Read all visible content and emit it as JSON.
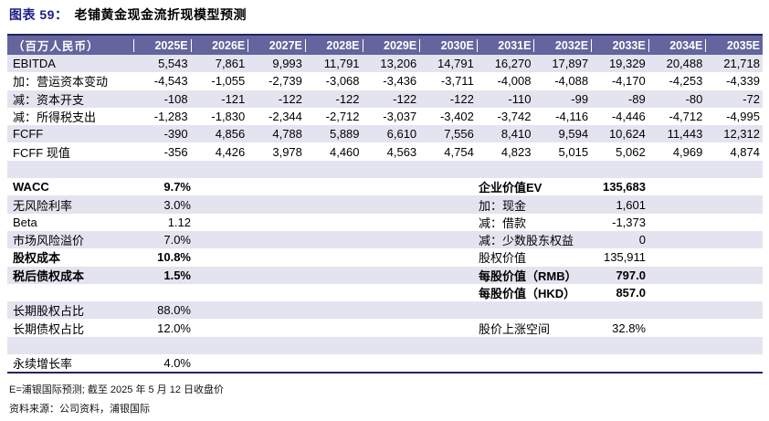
{
  "title": {
    "prefix": "图表 59：",
    "text": "老铺黄金现金流折现模型预测"
  },
  "colors": {
    "header_bg": "#64649e",
    "stripe_bg": "#e4e4f0",
    "title_accent": "#1c1c85",
    "border": "#23235f"
  },
  "forecast_table": {
    "unit_header": "（百万人民币）",
    "years": [
      "2025E",
      "2026E",
      "2027E",
      "2028E",
      "2029E",
      "2030E",
      "2031E",
      "2032E",
      "2033E",
      "2034E",
      "2035E"
    ],
    "rows": [
      {
        "label": "EBITDA",
        "values": [
          "5,543",
          "7,861",
          "9,993",
          "11,791",
          "13,206",
          "14,791",
          "16,270",
          "17,897",
          "19,329",
          "20,488",
          "21,718"
        ]
      },
      {
        "label": "加：营运资本变动",
        "values": [
          "-4,543",
          "-1,055",
          "-2,739",
          "-3,068",
          "-3,436",
          "-3,711",
          "-4,008",
          "-4,088",
          "-4,170",
          "-4,253",
          "-4,339"
        ]
      },
      {
        "label": "减：资本开支",
        "values": [
          "-108",
          "-121",
          "-122",
          "-122",
          "-122",
          "-122",
          "-110",
          "-99",
          "-89",
          "-80",
          "-72"
        ]
      },
      {
        "label": "减：所得税支出",
        "values": [
          "-1,283",
          "-1,830",
          "-2,344",
          "-2,712",
          "-3,037",
          "-3,402",
          "-3,742",
          "-4,116",
          "-4,446",
          "-4,712",
          "-4,995"
        ]
      },
      {
        "label": "FCFF",
        "values": [
          "-390",
          "4,856",
          "4,788",
          "5,889",
          "6,610",
          "7,556",
          "8,410",
          "9,594",
          "10,624",
          "11,443",
          "12,312"
        ]
      },
      {
        "label": "FCFF 现值",
        "values": [
          "-356",
          "4,426",
          "3,978",
          "4,460",
          "4,563",
          "4,754",
          "4,823",
          "5,015",
          "5,062",
          "4,969",
          "4,874"
        ]
      }
    ]
  },
  "assumptions": {
    "rows": [
      {
        "left_label": "",
        "left_value": "",
        "left_bold": false,
        "right_label": "",
        "right_value": "",
        "right_bold": false
      },
      {
        "left_label": "WACC",
        "left_value": "9.7%",
        "left_bold": true,
        "right_label": "企业价值EV",
        "right_value": "135,683",
        "right_bold": true
      },
      {
        "left_label": "无风险利率",
        "left_value": "3.0%",
        "left_bold": false,
        "right_label": "加：现金",
        "right_value": "1,601",
        "right_bold": false
      },
      {
        "left_label": "Beta",
        "left_value": "1.12",
        "left_bold": false,
        "right_label": "减：借款",
        "right_value": "-1,373",
        "right_bold": false
      },
      {
        "left_label": "市场风险溢价",
        "left_value": "7.0%",
        "left_bold": false,
        "right_label": "减：少数股东权益",
        "right_value": "0",
        "right_bold": false
      },
      {
        "left_label": "股权成本",
        "left_value": "10.8%",
        "left_bold": true,
        "right_label": "股权价值",
        "right_value": "135,911",
        "right_bold": false
      },
      {
        "left_label": "税后债权成本",
        "left_value": "1.5%",
        "left_bold": true,
        "right_label": "每股价值（RMB）",
        "right_value": "797.0",
        "right_bold": true
      },
      {
        "left_label": "",
        "left_value": "",
        "left_bold": false,
        "right_label": "每股价值（HKD）",
        "right_value": "857.0",
        "right_bold": true
      },
      {
        "left_label": "长期股权占比",
        "left_value": "88.0%",
        "left_bold": false,
        "right_label": "",
        "right_value": "",
        "right_bold": false
      },
      {
        "left_label": "长期债权占比",
        "left_value": "12.0%",
        "left_bold": false,
        "right_label": "股价上涨空间",
        "right_value": "32.8%",
        "right_bold": false
      },
      {
        "left_label": "",
        "left_value": "",
        "left_bold": false,
        "right_label": "",
        "right_value": "",
        "right_bold": false
      },
      {
        "left_label": "永续增长率",
        "left_value": "4.0%",
        "left_bold": false,
        "right_label": "",
        "right_value": "",
        "right_bold": false
      }
    ]
  },
  "footnotes": [
    "E=浦银国际预测; 截至 2025 年 5 月 12 日收盘价",
    "资料来源：公司资料，浦银国际"
  ]
}
